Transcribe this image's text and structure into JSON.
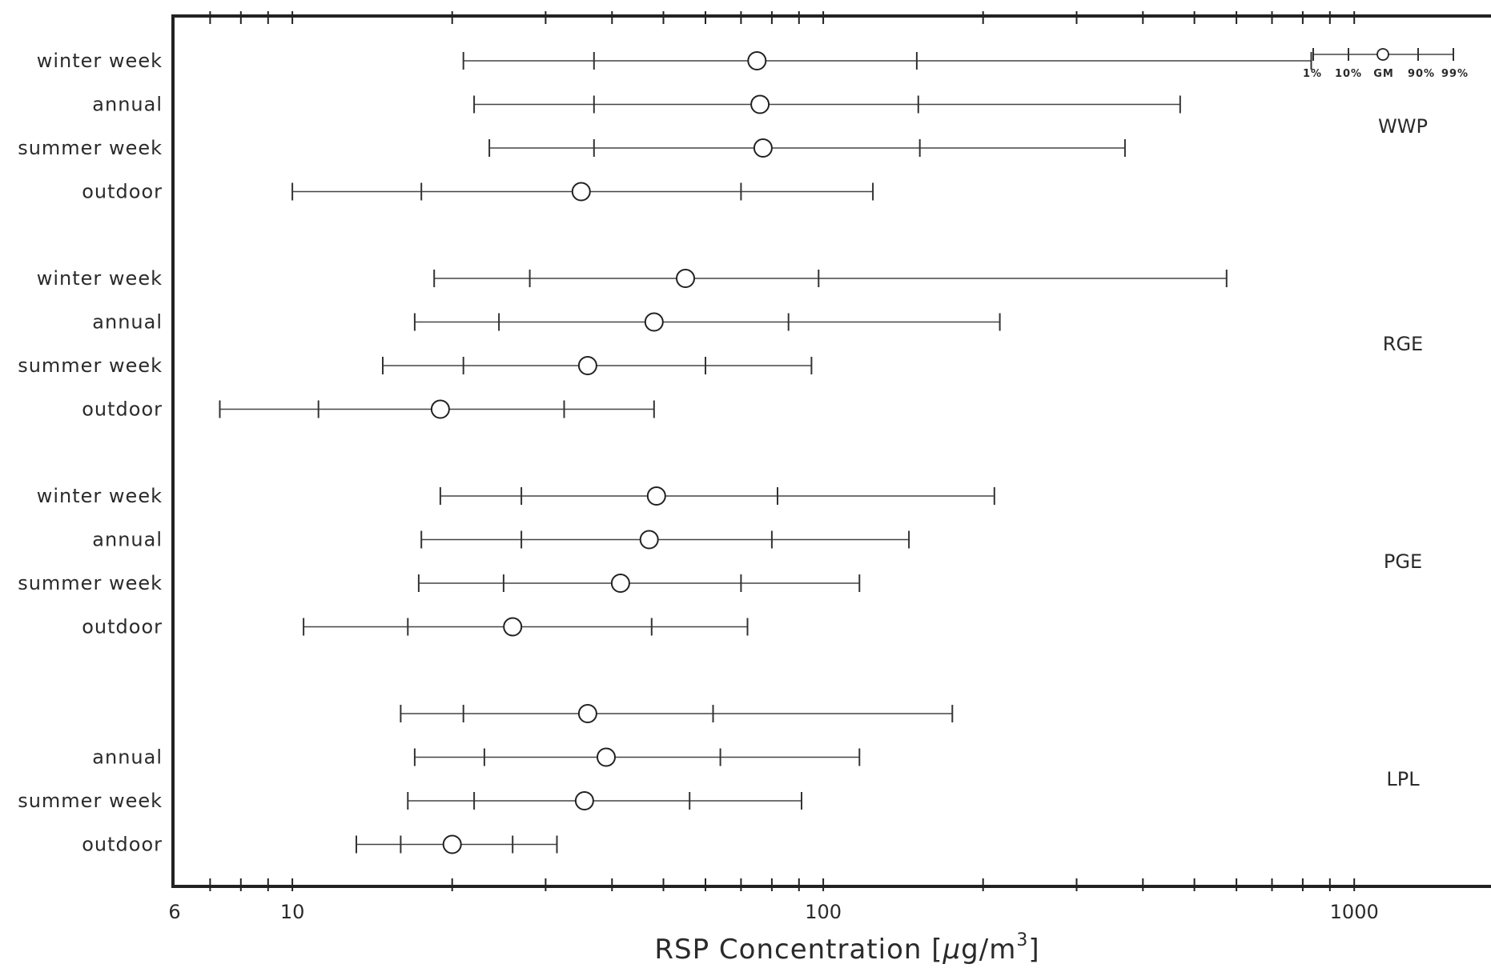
{
  "chart_data": {
    "type": "scatter",
    "description": "Horizontal percentile bars (1%, 10%, GM, 90%, 99%) on a log-scale x axis",
    "x_scale": "log",
    "xlim": [
      6,
      1900
    ],
    "xlabel_prefix": "RSP Concentration [",
    "xlabel_mu": "μ",
    "xlabel_unit": "g/m",
    "xlabel_sup": "3",
    "xlabel_suffix": "]",
    "tick_labels": [
      {
        "value": 6,
        "label": "6"
      },
      {
        "value": 10,
        "label": "10"
      },
      {
        "value": 100,
        "label": "100"
      },
      {
        "value": 1000,
        "label": "1000"
      }
    ],
    "minor_ticks": [
      7,
      8,
      9,
      20,
      30,
      40,
      50,
      60,
      70,
      80,
      90,
      200,
      300,
      400,
      500,
      600,
      700,
      800,
      900
    ],
    "legend": {
      "stats": [
        "1%",
        "10%",
        "GM",
        "90%",
        "99%"
      ],
      "placement": "top-right"
    },
    "groups": [
      {
        "name": "WWP",
        "rows": [
          {
            "label": "winter week",
            "p1": 21,
            "p10": 37,
            "gm": 75,
            "p90": 150,
            "p99": 830
          },
          {
            "label": "annual",
            "p1": 22,
            "p10": 37,
            "gm": 76,
            "p90": 151,
            "p99": 470
          },
          {
            "label": "summer week",
            "p1": 23.5,
            "p10": 37,
            "gm": 77,
            "p90": 152,
            "p99": 370
          },
          {
            "label": "outdoor",
            "p1": 10,
            "p10": 17.5,
            "gm": 35,
            "p90": 70,
            "p99": 124
          }
        ]
      },
      {
        "name": "RGE",
        "rows": [
          {
            "label": "winter week",
            "p1": 18.5,
            "p10": 28,
            "gm": 55,
            "p90": 98,
            "p99": 575
          },
          {
            "label": "annual",
            "p1": 17,
            "p10": 24.5,
            "gm": 48,
            "p90": 86,
            "p99": 215
          },
          {
            "label": "summer week",
            "p1": 14.8,
            "p10": 21,
            "gm": 36,
            "p90": 60,
            "p99": 95
          },
          {
            "label": "outdoor",
            "p1": 7.3,
            "p10": 11.2,
            "gm": 19,
            "p90": 32.5,
            "p99": 48
          }
        ]
      },
      {
        "name": "PGE",
        "rows": [
          {
            "label": "winter week",
            "p1": 19,
            "p10": 27,
            "gm": 48.5,
            "p90": 82,
            "p99": 210
          },
          {
            "label": "annual",
            "p1": 17.5,
            "p10": 27,
            "gm": 47,
            "p90": 80,
            "p99": 145
          },
          {
            "label": "summer week",
            "p1": 17.3,
            "p10": 25,
            "gm": 41.5,
            "p90": 70,
            "p99": 117
          },
          {
            "label": "outdoor",
            "p1": 10.5,
            "p10": 16.5,
            "gm": 26,
            "p90": 47.5,
            "p99": 72
          }
        ]
      },
      {
        "name": "LPL",
        "rows": [
          {
            "label": "",
            "p1": 16,
            "p10": 21,
            "gm": 36,
            "p90": 62,
            "p99": 175
          },
          {
            "label": "annual",
            "p1": 17,
            "p10": 23,
            "gm": 39,
            "p90": 64,
            "p99": 117
          },
          {
            "label": "summer week",
            "p1": 16.5,
            "p10": 22,
            "gm": 35.5,
            "p90": 56,
            "p99": 91
          },
          {
            "label": "outdoor",
            "p1": 13.2,
            "p10": 16,
            "gm": 20,
            "p90": 26,
            "p99": 31.5
          }
        ]
      }
    ]
  }
}
